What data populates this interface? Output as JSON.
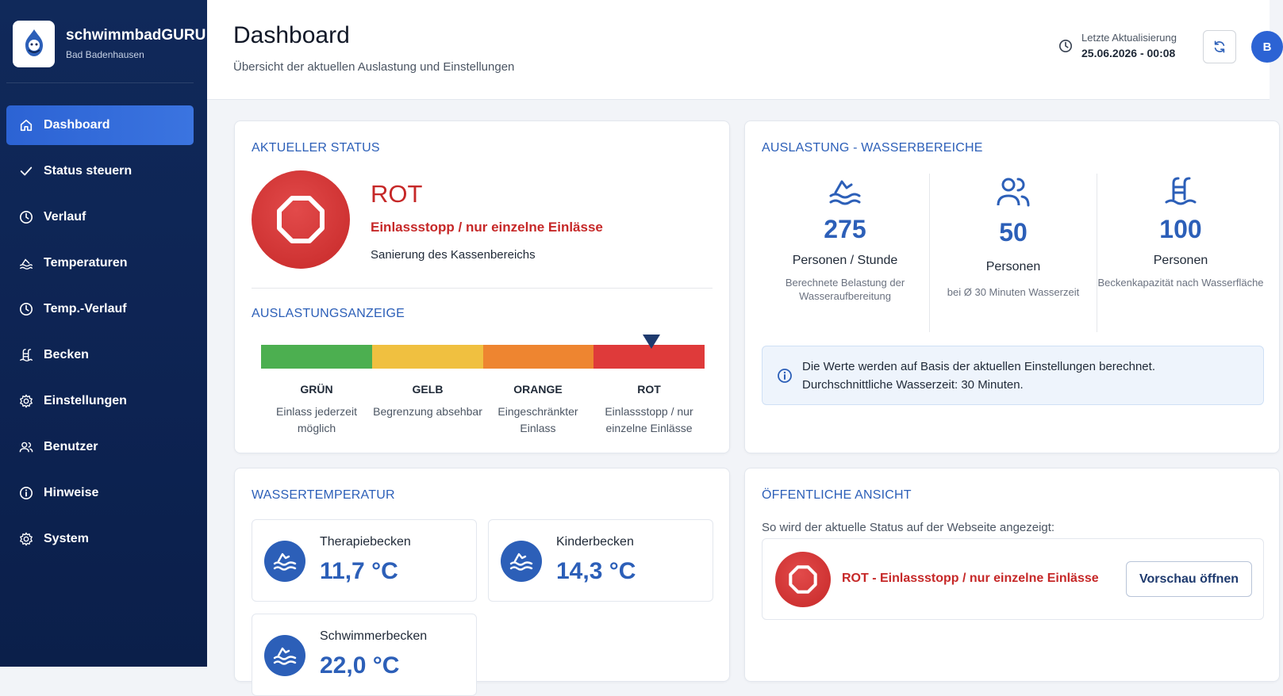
{
  "colors": {
    "sidebar_bg": "#10295a",
    "accent": "#2c63d4",
    "title_blue": "#2c5fb8",
    "status_red": "#c62828",
    "gauge_green": "#4caf50",
    "gauge_yellow": "#f0c040",
    "gauge_orange": "#ee8530",
    "gauge_red": "#df3a3a"
  },
  "sidebar": {
    "brand_name": "schwimmbadGURU",
    "brand_sub": "Bad Badenhausen",
    "items": [
      {
        "label": "Dashboard",
        "icon": "home-icon",
        "active": true
      },
      {
        "label": "Status steuern",
        "icon": "check-icon"
      },
      {
        "label": "Verlauf",
        "icon": "clock-icon"
      },
      {
        "label": "Temperaturen",
        "icon": "swimmer-icon"
      },
      {
        "label": "Temp.-Verlauf",
        "icon": "clock-icon"
      },
      {
        "label": "Becken",
        "icon": "pool-ladder-icon"
      },
      {
        "label": "Einstellungen",
        "icon": "gear-icon"
      },
      {
        "label": "Benutzer",
        "icon": "users-icon"
      },
      {
        "label": "Hinweise",
        "icon": "info-icon"
      },
      {
        "label": "System",
        "icon": "gear-icon"
      }
    ]
  },
  "header": {
    "title": "Dashboard",
    "subtitle": "Übersicht der aktuellen Auslastung und Einstellungen",
    "update_label": "Letzte Aktualisierung",
    "update_value": "25.06.2026 - 00:08",
    "avatar_initial": "B"
  },
  "status_card": {
    "title": "AKTUELLER STATUS",
    "level": "ROT",
    "headline": "Einlassstopp / nur einzelne Einlässe",
    "note": "Sanierung des Kassenbereichs",
    "gauge_title": "AUSLASTUNGSANZEIGE",
    "gauge_pointer_fraction": 0.88,
    "legend": [
      {
        "name": "GRÜN",
        "desc": "Einlass jederzeit möglich"
      },
      {
        "name": "GELB",
        "desc": "Begrenzung absehbar"
      },
      {
        "name": "ORANGE",
        "desc": "Eingeschränkter Einlass"
      },
      {
        "name": "ROT",
        "desc": "Einlassstopp / nur einzelne Einlässe"
      }
    ]
  },
  "load_card": {
    "title": "AUSLASTUNG - WASSERBEREICHE",
    "metrics": [
      {
        "icon": "water-wave-icon",
        "value": "275",
        "label": "Personen / Stunde",
        "desc": "Berechnete Belastung der Wasseraufbereitung"
      },
      {
        "icon": "users-icon",
        "value": "50",
        "label": "Personen",
        "desc": "bei Ø 30 Minuten Wasserzeit"
      },
      {
        "icon": "pool-ladder-icon",
        "value": "100",
        "label": "Personen",
        "desc": "Beckenkapazität nach Wasserfläche"
      }
    ],
    "info_line1": "Die Werte werden auf Basis der aktuellen Einstellungen berechnet.",
    "info_line2": "Durchschnittliche Wasserzeit: 30 Minuten."
  },
  "temp_card": {
    "title": "WASSERTEMPERATUR",
    "pools": [
      {
        "name": "Therapiebecken",
        "value": "11,7 °C"
      },
      {
        "name": "Kinderbecken",
        "value": "14,3 °C"
      },
      {
        "name": "Schwimmerbecken",
        "value": "22,0 °C"
      }
    ]
  },
  "public_card": {
    "title": "ÖFFENTLICHE ANSICHT",
    "subtitle": "So wird der aktuelle Status auf der Webseite angezeigt:",
    "status_text": "ROT - Einlassstopp / nur einzelne Einlässe",
    "preview_button": "Vorschau öffnen"
  }
}
